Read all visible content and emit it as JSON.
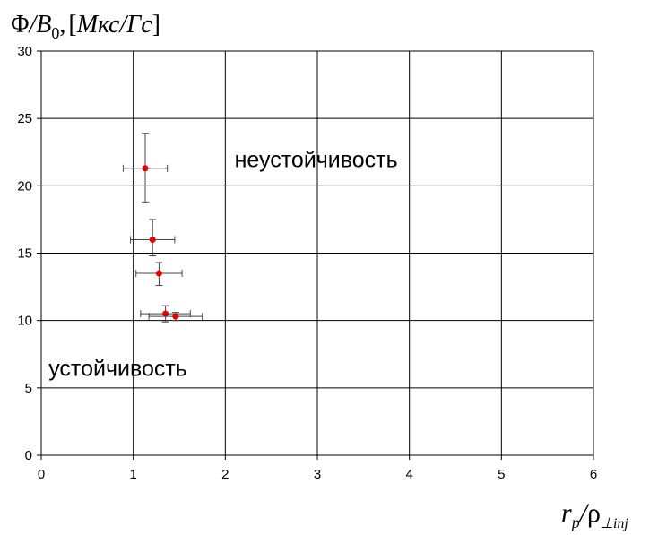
{
  "chart_data": {
    "type": "scatter",
    "ylabel_parts": {
      "phi": "Φ",
      "slash": "/",
      "b": "B",
      "b_sub": "0",
      "comma": ",",
      "bracket_open": "[",
      "unit1": "Мкс",
      "unit_slash": "/",
      "unit2": "Гс",
      "bracket_close": "]"
    },
    "xlabel_parts": {
      "r": "r",
      "r_sub": "p",
      "slash": "/",
      "rho": "ρ",
      "rho_sub": "⊥inj"
    },
    "xlim": [
      0,
      6
    ],
    "ylim": [
      0,
      30
    ],
    "x_ticks": [
      "0",
      "1",
      "2",
      "3",
      "4",
      "5",
      "6"
    ],
    "y_ticks": [
      "0",
      "5",
      "10",
      "15",
      "20",
      "25",
      "30"
    ],
    "grid": true,
    "marker_color": "#e00000",
    "error_bar_color": "#444444",
    "points": [
      {
        "x": 1.13,
        "y": 21.3,
        "xerr_low": 0.24,
        "xerr_high": 0.24,
        "yerr_low": 2.5,
        "yerr_high": 2.6
      },
      {
        "x": 1.21,
        "y": 16.0,
        "xerr_low": 0.24,
        "xerr_high": 0.24,
        "yerr_low": 1.2,
        "yerr_high": 1.5
      },
      {
        "x": 1.28,
        "y": 13.5,
        "xerr_low": 0.25,
        "xerr_high": 0.25,
        "yerr_low": 0.9,
        "yerr_high": 0.8
      },
      {
        "x": 1.35,
        "y": 10.5,
        "xerr_low": 0.27,
        "xerr_high": 0.27,
        "yerr_low": 0.6,
        "yerr_high": 0.6
      },
      {
        "x": 1.46,
        "y": 10.3,
        "xerr_low": 0.29,
        "xerr_high": 0.29,
        "yerr_low": 0.3,
        "yerr_high": 0.3
      }
    ],
    "annotations": [
      {
        "text": "неустойчивость",
        "x": 2.1,
        "y": 22.0
      },
      {
        "text": "устойчивость",
        "x": 0.08,
        "y": 6.5
      }
    ]
  }
}
